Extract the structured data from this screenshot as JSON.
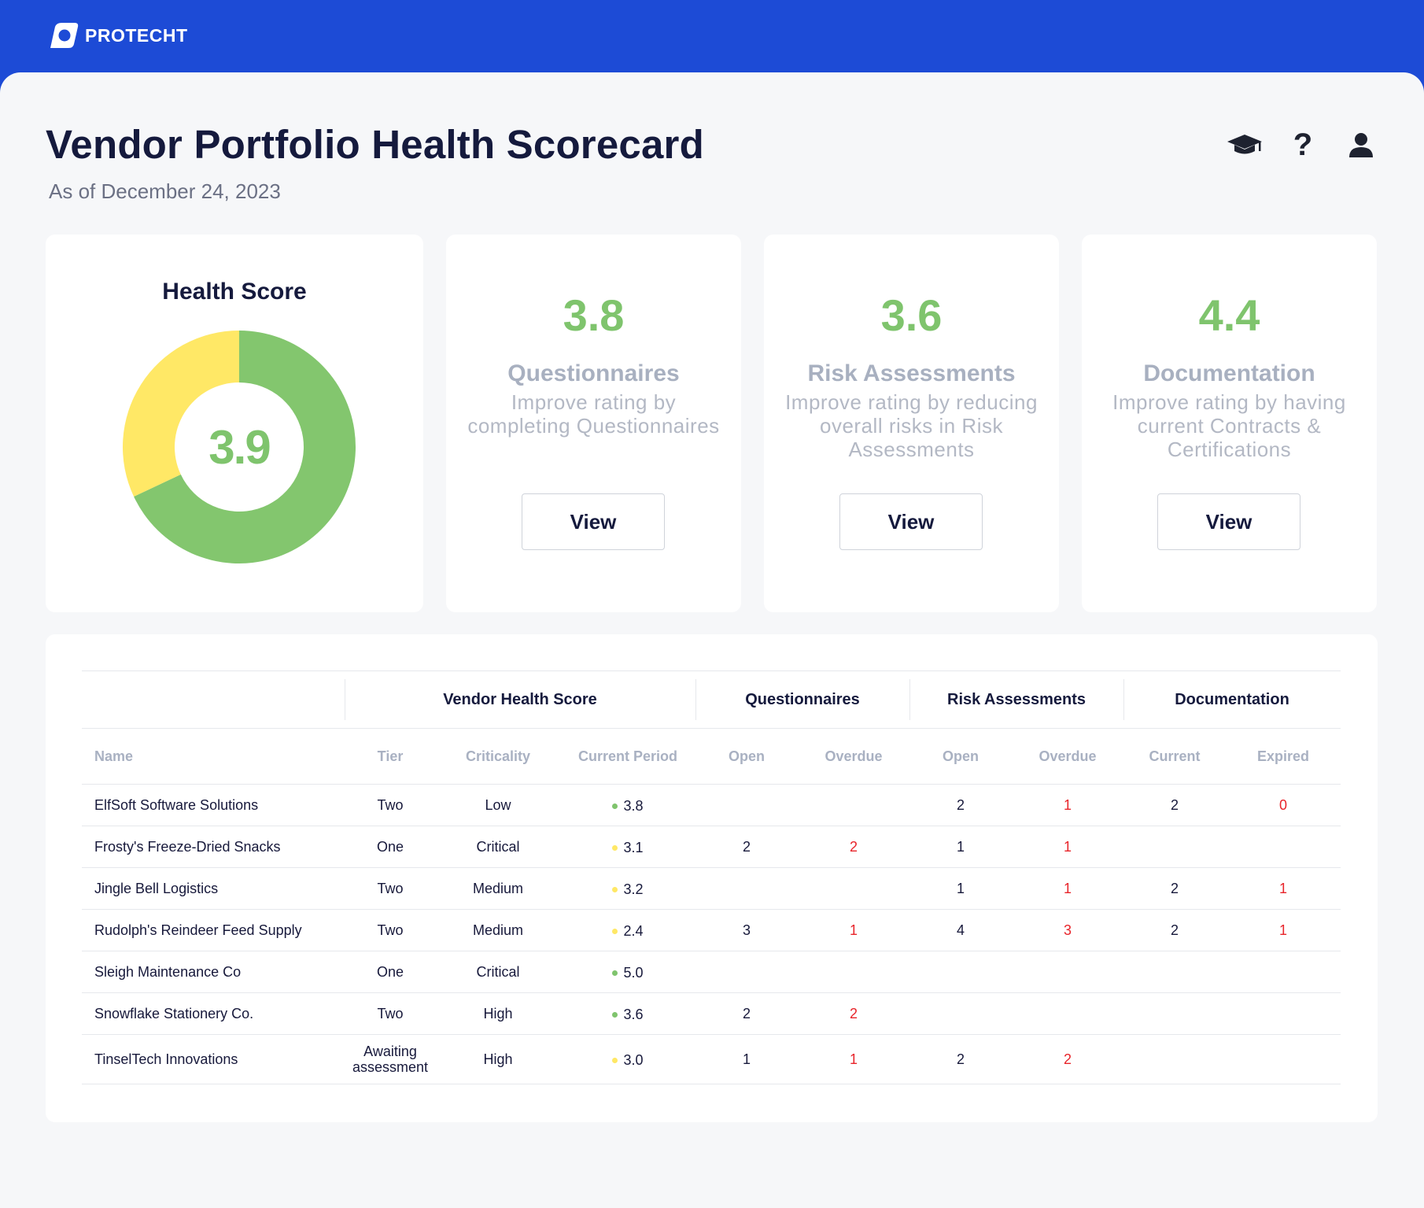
{
  "brand": {
    "name": "PROTECHT"
  },
  "header": {
    "title": "Vendor Portfolio Health Scorecard",
    "subtitle": "As of December 24, 2023",
    "icons": [
      "graduation-cap-icon",
      "help-icon",
      "user-icon"
    ]
  },
  "colors": {
    "brand_blue": "#1d4bd6",
    "good": "#7fc46d",
    "warn": "#ffe866",
    "alert": "#e8242a"
  },
  "health": {
    "title": "Health Score",
    "value": "3.9",
    "chart_data": {
      "type": "pie",
      "series": [
        {
          "value": 0.68,
          "color": "#83c66e"
        },
        {
          "value": 0.32,
          "color": "#ffe866"
        }
      ]
    }
  },
  "metrics": [
    {
      "value": "3.8",
      "label": "Questionnaires",
      "desc": "Improve rating by completing Questionnaires",
      "button": "View"
    },
    {
      "value": "3.6",
      "label": "Risk Assessments",
      "desc": "Improve rating by reducing overall risks in Risk Assessments",
      "button": "View"
    },
    {
      "value": "4.4",
      "label": "Documentation",
      "desc": "Improve rating by having current Contracts & Certifications",
      "button": "View"
    }
  ],
  "table": {
    "groups": {
      "vendor_health": "Vendor Health Score",
      "questionnaires": "Questionnaires",
      "risk": "Risk Assessments",
      "documentation": "Documentation"
    },
    "columns": [
      "Name",
      "Tier",
      "Criticality",
      "Current Period",
      "Open",
      "Overdue",
      "Open",
      "Overdue",
      "Current",
      "Expired"
    ],
    "rows": [
      {
        "name": "ElfSoft Software Solutions",
        "tier": "Two",
        "criticality": "Low",
        "score": "3.8",
        "status": "good",
        "q_open": "",
        "q_overdue": "",
        "r_open": "2",
        "r_overdue": "1",
        "d_current": "2",
        "d_expired": "0"
      },
      {
        "name": "Frosty's Freeze-Dried Snacks",
        "tier": "One",
        "criticality": "Critical",
        "score": "3.1",
        "status": "warn",
        "q_open": "2",
        "q_overdue": "2",
        "r_open": "1",
        "r_overdue": "1",
        "d_current": "",
        "d_expired": ""
      },
      {
        "name": "Jingle Bell Logistics",
        "tier": "Two",
        "criticality": "Medium",
        "score": "3.2",
        "status": "warn",
        "q_open": "",
        "q_overdue": "",
        "r_open": "1",
        "r_overdue": "1",
        "d_current": "2",
        "d_expired": "1"
      },
      {
        "name": "Rudolph's Reindeer Feed Supply",
        "tier": "Two",
        "criticality": "Medium",
        "score": "2.4",
        "status": "warn",
        "q_open": "3",
        "q_overdue": "1",
        "r_open": "4",
        "r_overdue": "3",
        "d_current": "2",
        "d_expired": "1"
      },
      {
        "name": "Sleigh Maintenance Co",
        "tier": "One",
        "criticality": "Critical",
        "score": "5.0",
        "status": "good",
        "q_open": "",
        "q_overdue": "",
        "r_open": "",
        "r_overdue": "",
        "d_current": "",
        "d_expired": ""
      },
      {
        "name": "Snowflake Stationery Co.",
        "tier": "Two",
        "criticality": "High",
        "score": "3.6",
        "status": "good",
        "q_open": "2",
        "q_overdue": "2",
        "r_open": "",
        "r_overdue": "",
        "d_current": "",
        "d_expired": ""
      },
      {
        "name": "TinselTech Innovations",
        "tier": "Awaiting assessment",
        "criticality": "High",
        "score": "3.0",
        "status": "warn",
        "q_open": "1",
        "q_overdue": "1",
        "r_open": "2",
        "r_overdue": "2",
        "d_current": "",
        "d_expired": ""
      }
    ]
  }
}
